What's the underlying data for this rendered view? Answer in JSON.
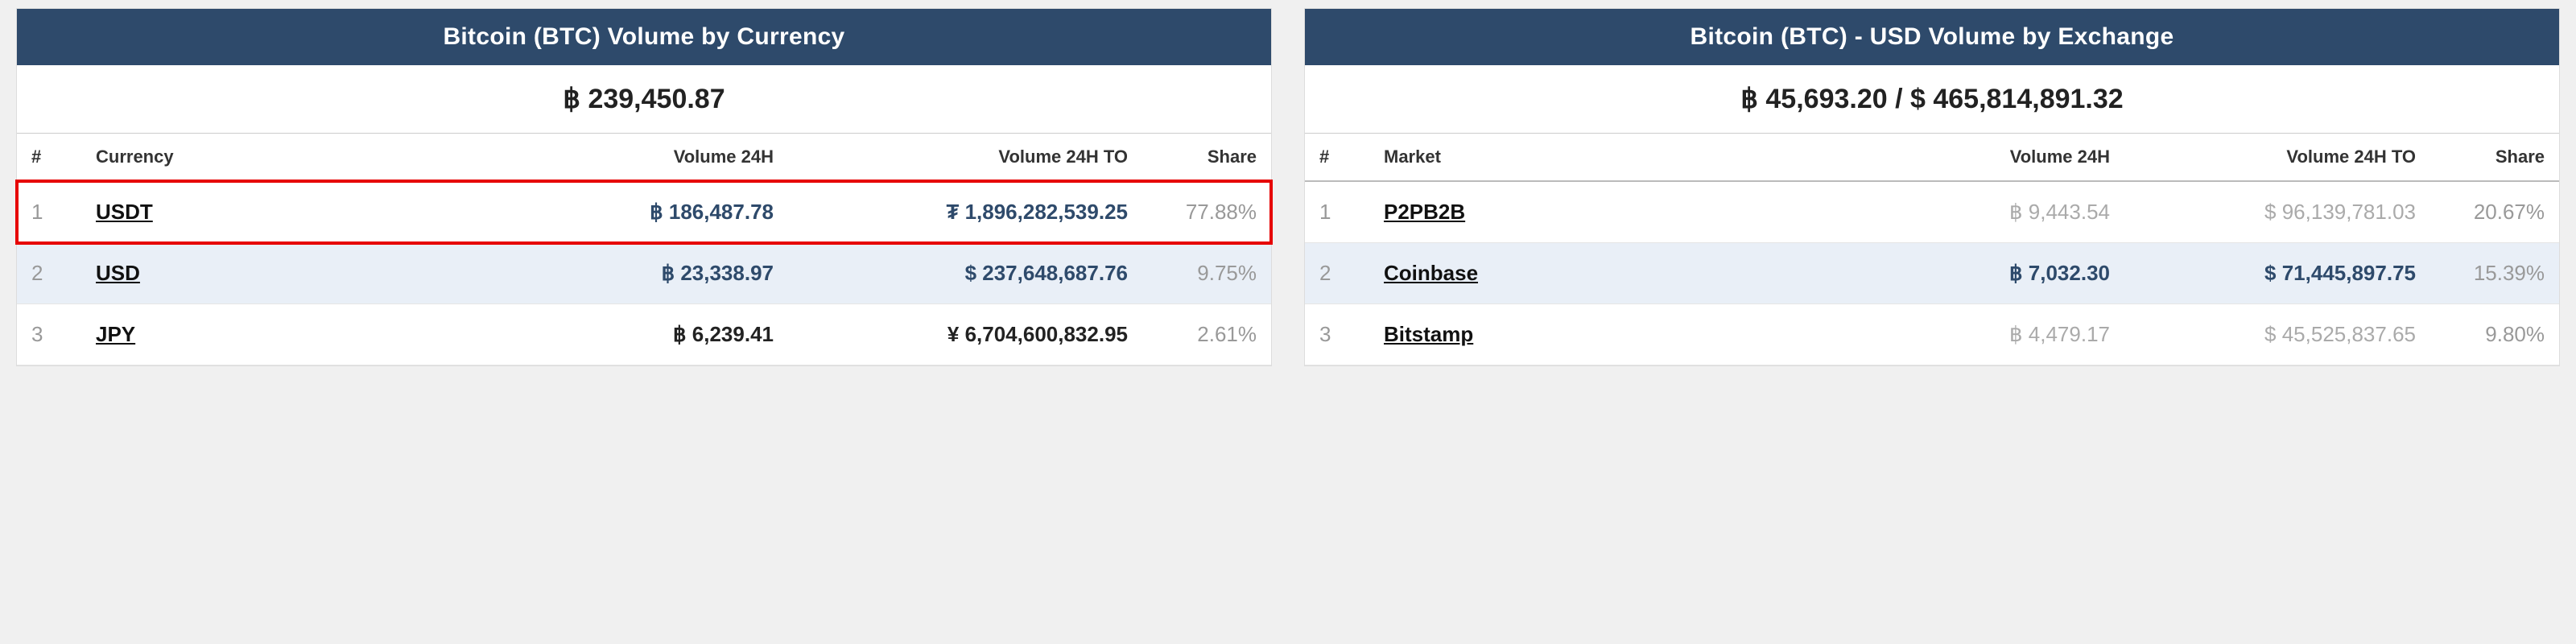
{
  "left": {
    "title": "Bitcoin (BTC) Volume by Currency",
    "total": "฿ 239,450.87",
    "columns": {
      "rank": "#",
      "name": "Currency",
      "vol24": "Volume 24H",
      "vol24to": "Volume 24H TO",
      "share": "Share"
    },
    "rows": [
      {
        "rank": "1",
        "name": "USDT",
        "vol24": "฿ 186,487.78",
        "vol24to": "₮ 1,896,282,539.25",
        "share": "77.88%",
        "highlight": true,
        "vol24_class": "blue",
        "vol24to_class": "blue"
      },
      {
        "rank": "2",
        "name": "USD",
        "vol24": "฿ 23,338.97",
        "vol24to": "$ 237,648,687.76",
        "share": "9.75%",
        "alt": true,
        "vol24_class": "blue",
        "vol24to_class": "blue"
      },
      {
        "rank": "3",
        "name": "JPY",
        "vol24": "฿ 6,239.41",
        "vol24to": "¥ 6,704,600,832.95",
        "share": "2.61%",
        "vol24_class": "dark",
        "vol24to_class": "dark"
      }
    ]
  },
  "right": {
    "title": "Bitcoin (BTC) - USD Volume by Exchange",
    "total": "฿ 45,693.20 / $ 465,814,891.32",
    "columns": {
      "rank": "#",
      "name": "Market",
      "vol24": "Volume 24H",
      "vol24to": "Volume 24H TO",
      "share": "Share"
    },
    "rows": [
      {
        "rank": "1",
        "name": "P2PB2B",
        "vol24": "฿ 9,443.54",
        "vol24to": "$ 96,139,781.03",
        "share": "20.67%",
        "vol24_class": "gray",
        "vol24to_class": "gray"
      },
      {
        "rank": "2",
        "name": "Coinbase",
        "vol24": "฿ 7,032.30",
        "vol24to": "$ 71,445,897.75",
        "share": "15.39%",
        "alt": true,
        "vol24_class": "blue",
        "vol24to_class": "blue"
      },
      {
        "rank": "3",
        "name": "Bitstamp",
        "vol24": "฿ 4,479.17",
        "vol24to": "$ 45,525,837.65",
        "share": "9.80%",
        "vol24_class": "gray",
        "vol24to_class": "gray"
      }
    ]
  },
  "colors": {
    "header_bg": "#2e4a6b",
    "highlight_border": "#e60000",
    "alt_row_bg": "#e9eff7",
    "muted_text": "#999999"
  }
}
